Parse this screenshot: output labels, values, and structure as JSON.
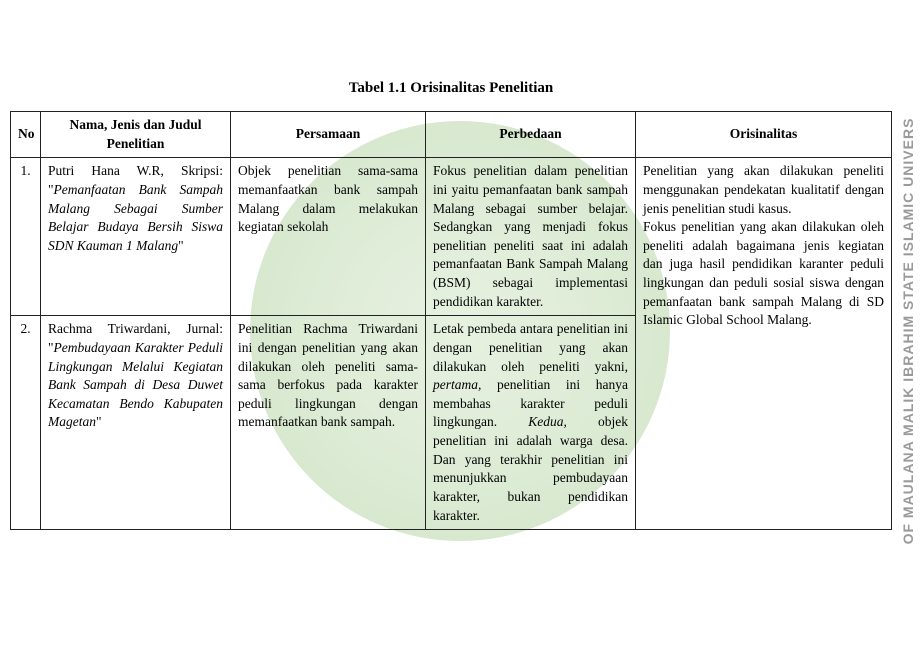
{
  "title": "Tabel 1.1 Orisinalitas Penelitian",
  "sideText": "OF MAULANA MALIK IBRAHIM STATE ISLAMIC UNIVERS",
  "headers": {
    "no": "No",
    "nama": "Nama, Jenis dan Judul Penelitian",
    "persamaan": "Persamaan",
    "perbedaan": "Perbedaan",
    "orisinalitas": "Orisinalitas"
  },
  "rows": [
    {
      "no": "1.",
      "nama_plain": "Putri Hana W.R, Skripsi: \"",
      "nama_italic": "Pemanfaatan Bank Sampah Malang Sebagai Sumber Belajar Budaya Bersih Siswa SDN Kauman 1 Malang",
      "nama_close": "\"",
      "persamaan": "Objek penelitian sama-sama memanfaatkan bank sampah Malang dalam melakukan kegiatan sekolah",
      "perbedaan": "Fokus penelitian dalam penelitian ini yaitu pemanfaatan bank sampah Malang sebagai sumber belajar. Sedangkan yang menjadi fokus penelitian peneliti saat ini adalah pemanfaatan Bank Sampah Malang (BSM) sebagai implementasi pendidikan karakter."
    },
    {
      "no": "2.",
      "nama_plain": "Rachma Triwardani, Jurnal: \"",
      "nama_italic": "Pembudayaan Karakter Peduli Lingkungan Melalui Kegiatan Bank Sampah di Desa Duwet Kecamatan Bendo Kabupaten Magetan",
      "nama_close": "\"",
      "persamaan": "Penelitian Rachma Triwardani ini dengan penelitian yang akan dilakukan oleh peneliti sama-sama berfokus pada karakter peduli lingkungan dengan memanfaatkan bank sampah.",
      "perbedaan_pre": "Letak pembeda antara penelitian ini dengan penelitian yang akan dilakukan oleh peneliti yakni, ",
      "perbedaan_i1": "pertama,",
      "perbedaan_mid": " penelitian ini hanya membahas karakter peduli lingkungan. ",
      "perbedaan_i2": "Kedua,",
      "perbedaan_post": " objek penelitian ini adalah warga desa. Dan yang terakhir penelitian ini menunjukkan pembudayaan karakter, bukan pendidikan karakter."
    }
  ],
  "orisinalitas_p1": "Penelitian yang akan dilakukan peneliti menggunakan pendekatan kualitatif dengan jenis penelitian studi kasus.",
  "orisinalitas_p2": "Fokus penelitian yang akan dilakukan oleh peneliti adalah bagaimana jenis kegiatan dan juga hasil pendidikan karanter peduli lingkungan dan peduli sosial siswa dengan pemanfaatan bank sampah Malang di SD Islamic Global School Malang."
}
